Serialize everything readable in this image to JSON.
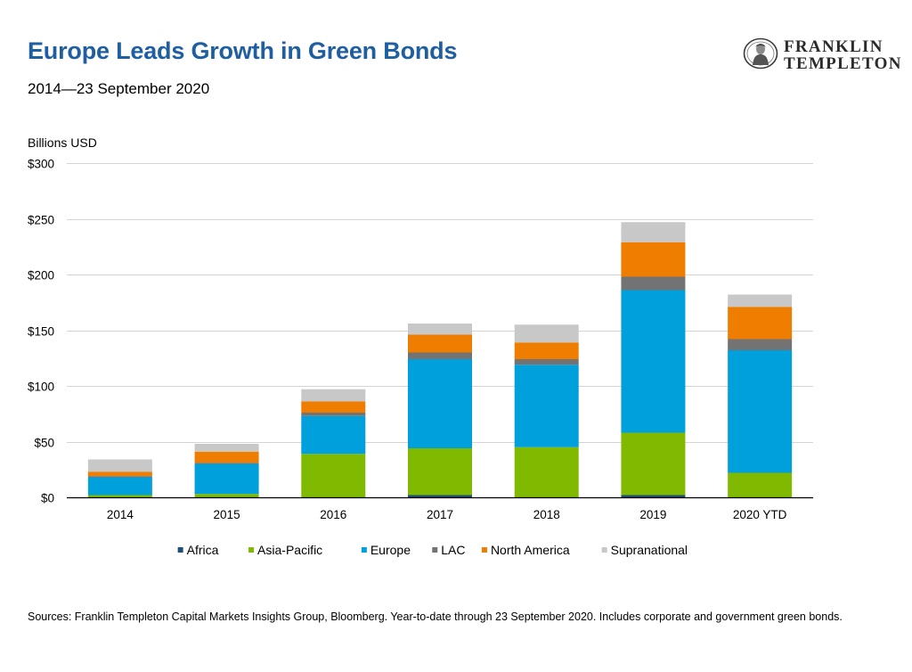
{
  "header": {
    "title": "Europe Leads Growth in Green Bonds",
    "subtitle": "2014—23 September 2020"
  },
  "logo": {
    "line1": "FRANKLIN",
    "line2": "TEMPLETON",
    "icon": "portrait-icon"
  },
  "chart_data": {
    "type": "bar",
    "stacked": true,
    "ylabel": "Billions USD",
    "ylim": [
      0,
      300
    ],
    "yticks": [
      0,
      50,
      100,
      150,
      200,
      250,
      300
    ],
    "ytick_labels": [
      "$0",
      "$50",
      "$100",
      "$150",
      "$200",
      "$250",
      "$300"
    ],
    "categories": [
      "2014",
      "2015",
      "2016",
      "2017",
      "2018",
      "2019",
      "2020 YTD"
    ],
    "grid": true,
    "legend_position": "bottom",
    "series": [
      {
        "name": "Africa",
        "color": "#1f4e79",
        "values": [
          0,
          0,
          0,
          2,
          0,
          2,
          0
        ]
      },
      {
        "name": "Asia-Pacific",
        "color": "#7fba00",
        "values": [
          2,
          3,
          39,
          42,
          45,
          56,
          22
        ]
      },
      {
        "name": "Europe",
        "color": "#00a0dc",
        "values": [
          16,
          27,
          34,
          80,
          74,
          128,
          110
        ]
      },
      {
        "name": "LAC",
        "color": "#737373",
        "values": [
          1,
          1,
          3,
          6,
          5,
          12,
          10
        ]
      },
      {
        "name": "North America",
        "color": "#ee7d00",
        "values": [
          4,
          10,
          10,
          16,
          15,
          31,
          29
        ]
      },
      {
        "name": "Supranational",
        "color": "#c8c8c8",
        "values": [
          11,
          7,
          11,
          10,
          16,
          18,
          11
        ]
      }
    ]
  },
  "footnote": "Sources: Franklin Templeton Capital Markets Insights Group, Bloomberg. Year-to-date through 23 September 2020. Includes corporate and government green bonds."
}
